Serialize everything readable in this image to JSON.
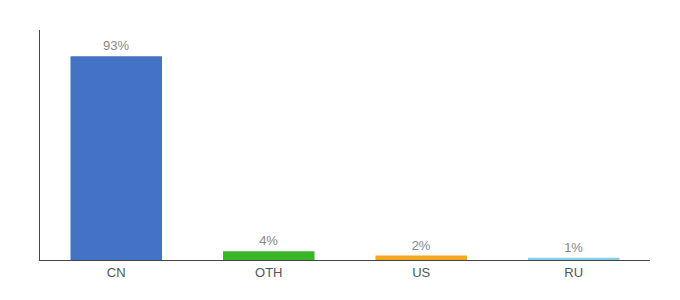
{
  "chart_data": {
    "type": "bar",
    "categories": [
      "CN",
      "OTH",
      "US",
      "RU"
    ],
    "values": [
      93,
      4,
      2,
      1
    ],
    "value_labels": [
      "93%",
      "4%",
      "2%",
      "1%"
    ],
    "colors": [
      "#4472C4",
      "#3BB528",
      "#F5A623",
      "#87CEEB"
    ],
    "ylim": [
      0,
      105
    ],
    "grid": false,
    "data_labels": true,
    "tick_labels": "x"
  }
}
